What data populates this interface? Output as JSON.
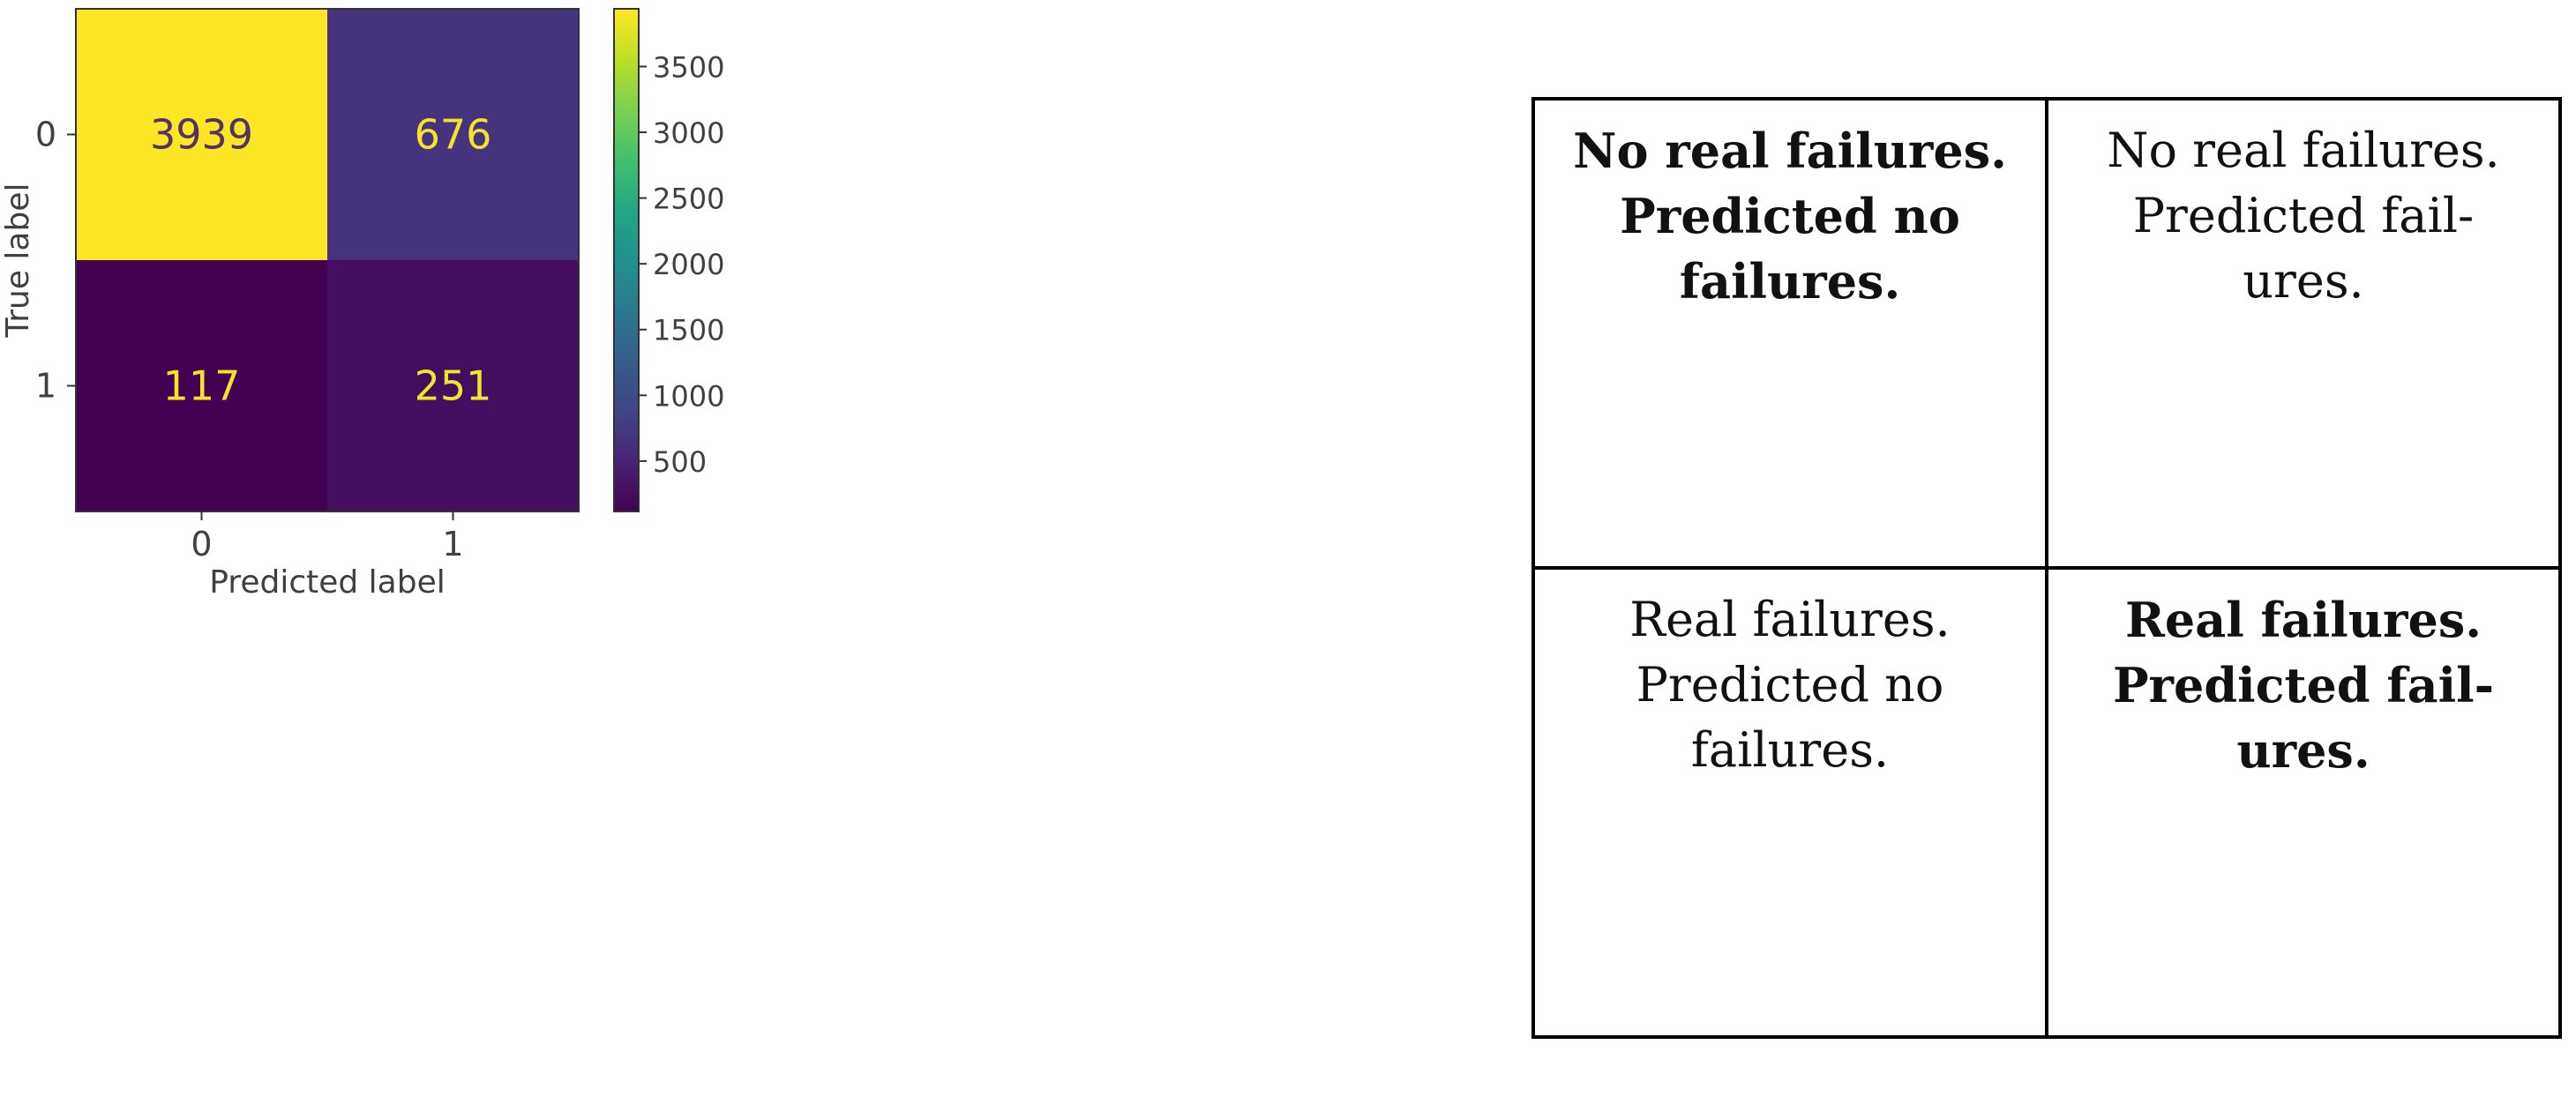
{
  "chart_data": {
    "type": "heatmap",
    "title": "",
    "xlabel": "Predicted label",
    "ylabel": "True label",
    "x_categories": [
      "0",
      "1"
    ],
    "y_categories": [
      "0",
      "1"
    ],
    "matrix": [
      [
        3939,
        676
      ],
      [
        117,
        251
      ]
    ],
    "colormap": "viridis",
    "colorbar": {
      "range": [
        117,
        3939
      ],
      "ticks": [
        500,
        1000,
        1500,
        2000,
        2500,
        3000,
        3500
      ]
    },
    "annotation_colors": {
      "dark_cell": "#f5e22a",
      "light_cell": "#56306a"
    }
  },
  "explanation_table": {
    "rows": [
      [
        {
          "lines": [
            "No real failures.",
            "Predicted no",
            "failures."
          ],
          "bold": true
        },
        {
          "lines": [
            "No real failures.",
            "Predicted fail-",
            "ures."
          ],
          "bold": false
        }
      ],
      [
        {
          "lines": [
            "Real failures.",
            "Predicted no",
            "failures."
          ],
          "bold": false
        },
        {
          "lines": [
            "Real failures.",
            "Predicted fail-",
            "ures."
          ],
          "bold": true
        }
      ]
    ]
  }
}
